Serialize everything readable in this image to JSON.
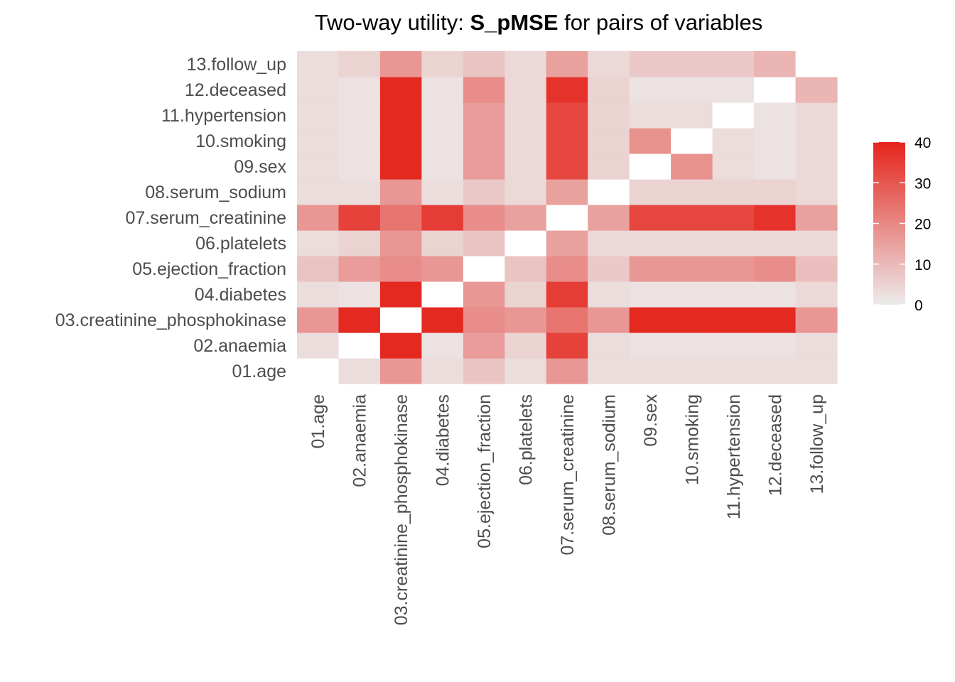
{
  "title": {
    "prefix": "Two-way utility: ",
    "bold": "S_pMSE",
    "suffix": " for pairs of variables"
  },
  "colors": {
    "low": "#ececec",
    "high": "#e4241c",
    "missing": "#ffffff"
  },
  "chart_data": {
    "type": "heatmap",
    "title": "Two-way utility: S_pMSE for pairs of variables",
    "x_categories": [
      "01.age",
      "02.anaemia",
      "03.creatinine_phosphokinase",
      "04.diabetes",
      "05.ejection_fraction",
      "06.platelets",
      "07.serum_creatinine",
      "08.serum_sodium",
      "09.sex",
      "10.smoking",
      "11.hypertension",
      "12.deceased",
      "13.follow_up"
    ],
    "y_categories": [
      "01.age",
      "02.anaemia",
      "03.creatinine_phosphokinase",
      "04.diabetes",
      "05.ejection_fraction",
      "06.platelets",
      "07.serum_creatinine",
      "08.serum_sodium",
      "09.sex",
      "10.smoking",
      "11.hypertension",
      "12.deceased",
      "13.follow_up"
    ],
    "values": [
      [
        null,
        3,
        17,
        3,
        8,
        3,
        17,
        3,
        3,
        3,
        3,
        3,
        3
      ],
      [
        3,
        null,
        39,
        2,
        16,
        5,
        34,
        3,
        2,
        2,
        2,
        2,
        3
      ],
      [
        17,
        39,
        null,
        39,
        19,
        17,
        24,
        17,
        39,
        39,
        39,
        39,
        17
      ],
      [
        3,
        2,
        39,
        null,
        17,
        5,
        35,
        3,
        2,
        2,
        2,
        2,
        4
      ],
      [
        8,
        16,
        19,
        17,
        null,
        8,
        19,
        7,
        17,
        17,
        17,
        19,
        9
      ],
      [
        3,
        5,
        17,
        5,
        8,
        null,
        15,
        4,
        4,
        4,
        4,
        4,
        4
      ],
      [
        17,
        34,
        24,
        35,
        19,
        15,
        null,
        15,
        33,
        33,
        33,
        37,
        15
      ],
      [
        3,
        3,
        17,
        3,
        7,
        4,
        15,
        null,
        5,
        5,
        5,
        5,
        4
      ],
      [
        3,
        2,
        39,
        2,
        16,
        4,
        33,
        5,
        null,
        18,
        3,
        2,
        4
      ],
      [
        3,
        2,
        39,
        2,
        16,
        4,
        33,
        5,
        18,
        null,
        3,
        2,
        4
      ],
      [
        3,
        2,
        39,
        2,
        16,
        4,
        33,
        5,
        3,
        3,
        null,
        2,
        4
      ],
      [
        3,
        2,
        39,
        2,
        19,
        4,
        37,
        5,
        2,
        2,
        2,
        null,
        11
      ],
      [
        3,
        5,
        17,
        5,
        8,
        4,
        15,
        4,
        7,
        7,
        7,
        11,
        null
      ]
    ],
    "colorbar": {
      "min": 0,
      "max": 40,
      "ticks": [
        "0",
        "10",
        "20",
        "30",
        "40"
      ]
    },
    "xlabel": "",
    "ylabel": "",
    "legend": "right"
  }
}
